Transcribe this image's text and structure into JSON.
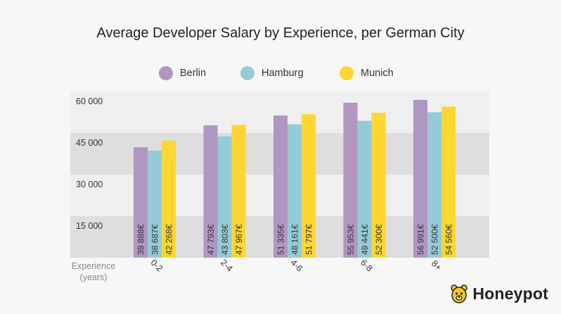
{
  "title": "Average Developer Salary by Experience, per German City",
  "legend": [
    {
      "label": "Berlin",
      "color": "#b096c2"
    },
    {
      "label": "Hamburg",
      "color": "#95cbd6"
    },
    {
      "label": "Munich",
      "color": "#fdd633"
    }
  ],
  "colors": {
    "band_light": "#efefef",
    "band_dark": "#dedede",
    "text": "#333333",
    "axis_caption": "#888888"
  },
  "x_axis_caption": [
    "Experience",
    "(years)"
  ],
  "brand": {
    "name": "Honeypot",
    "icon": "bear-icon"
  },
  "chart_data": {
    "type": "bar",
    "title": "Average Developer Salary by Experience, per German City",
    "xlabel": "Experience (years)",
    "ylabel": "",
    "categories": [
      "0-2",
      "2-4",
      "4-6",
      "6-8",
      "8+"
    ],
    "ylim": [
      0,
      60000
    ],
    "yticks": [
      15000,
      30000,
      45000,
      60000
    ],
    "ytick_labels": [
      "15 000",
      "30 000",
      "45 000",
      "60 000"
    ],
    "grid": "alternating horizontal bands",
    "legend_position": "top",
    "series": [
      {
        "name": "Berlin",
        "color": "#b096c2",
        "values": [
          39888,
          47793,
          51335,
          55953,
          56991
        ],
        "labels": [
          "39 888€",
          "47 793€",
          "51 335€",
          "55 953€",
          "56 991€"
        ]
      },
      {
        "name": "Hamburg",
        "color": "#95cbd6",
        "values": [
          38687,
          43803,
          48161,
          49441,
          52500
        ],
        "labels": [
          "38 687€",
          "43 803€",
          "48 161€",
          "49 441€",
          "52 500€"
        ]
      },
      {
        "name": "Munich",
        "color": "#fdd633",
        "values": [
          42268,
          47967,
          51797,
          52300,
          54560
        ],
        "labels": [
          "42 268€",
          "47 967€",
          "51 797€",
          "52 300€",
          "54 560€"
        ]
      }
    ]
  }
}
